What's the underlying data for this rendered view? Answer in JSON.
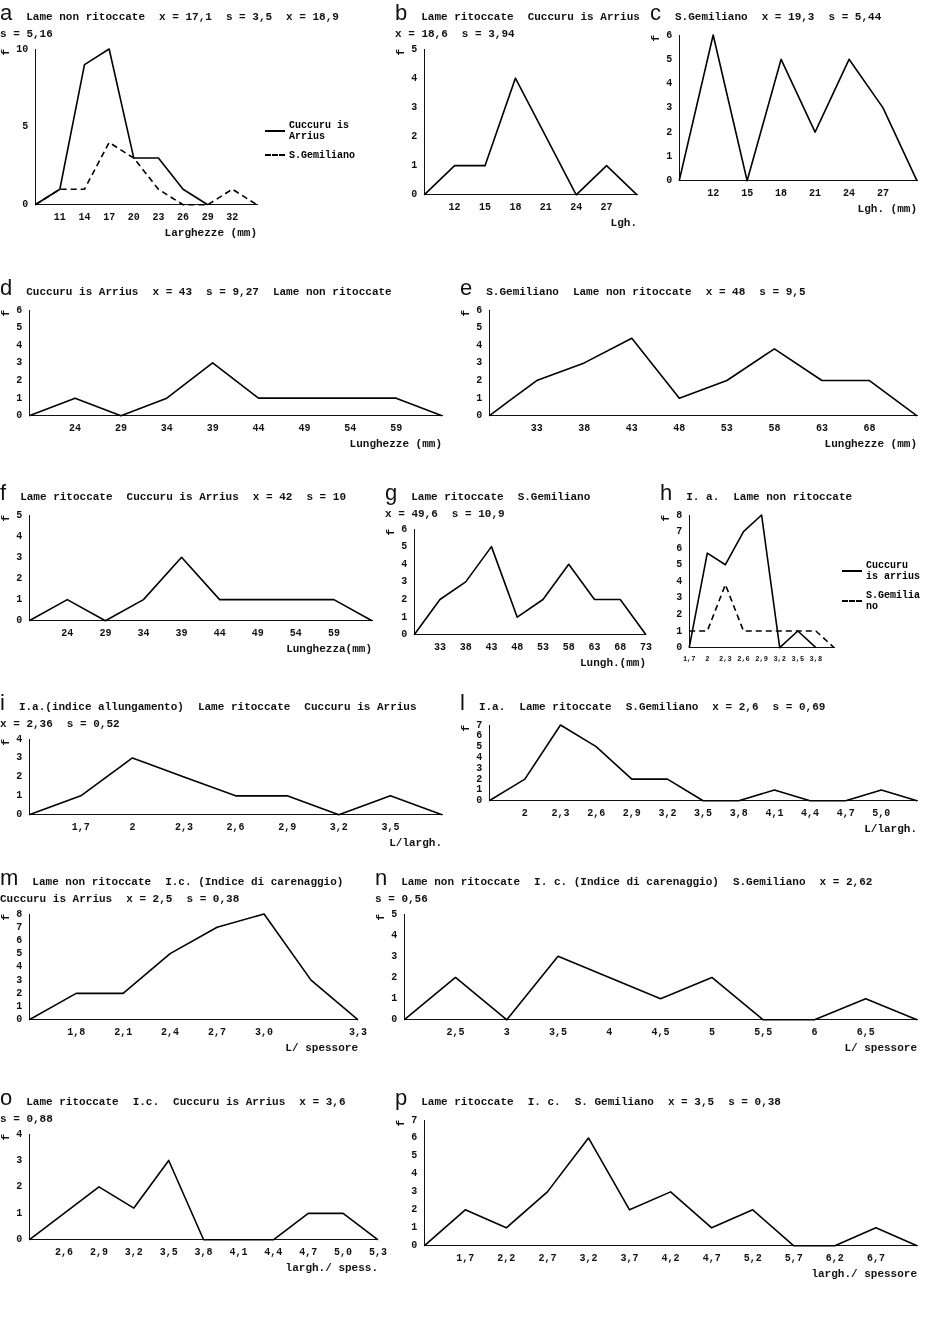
{
  "chart_data": [
    {
      "type": "line",
      "title": "a",
      "xlabel": "Larghezze (mm)",
      "ylabel": "f",
      "categories": [
        null,
        "11",
        "14",
        "17",
        "20",
        "23",
        "26",
        "29",
        "32",
        null
      ],
      "ylim": [
        0,
        10
      ],
      "yticks": [
        0,
        5,
        10
      ],
      "grid": false,
      "legend": "right",
      "marker": "none",
      "annotations": [
        "Lame non ritoccate",
        "x = 17,1",
        "s = 3,5",
        "x = 18,9",
        "s = 5,16"
      ],
      "series": [
        {
          "name": "Cuccuru is Arrius",
          "color": "#000000",
          "line_style": "solid",
          "values": [
            0,
            1,
            9,
            10,
            3,
            3,
            1,
            0,
            null,
            null
          ]
        },
        {
          "name": "S.Gemiliano",
          "color": "#000000",
          "line_style": "dashed",
          "values": [
            0,
            1,
            1,
            4,
            3,
            1,
            0,
            0,
            1,
            0
          ]
        }
      ]
    },
    {
      "type": "line",
      "title": "b",
      "xlabel": "Lgh.",
      "ylabel": "f",
      "categories": [
        null,
        "12",
        "15",
        "18",
        "21",
        "24",
        "27",
        null
      ],
      "ylim": [
        0,
        5
      ],
      "yticks": [
        0,
        1,
        2,
        3,
        4,
        5
      ],
      "grid": false,
      "marker": "none",
      "annotations": [
        "Lame ritoccate",
        "Cuccuru is Arrius",
        "x = 18,6",
        "s = 3,94"
      ],
      "series": [
        {
          "color": "#000000",
          "values": [
            0,
            1,
            1,
            4,
            2,
            0,
            1,
            0
          ]
        }
      ]
    },
    {
      "type": "line",
      "title": "c",
      "xlabel": "Lgh. (mm)",
      "ylabel": "f",
      "categories": [
        null,
        "12",
        "15",
        "18",
        "21",
        "24",
        "27",
        null
      ],
      "ylim": [
        0,
        6
      ],
      "yticks": [
        0,
        1,
        2,
        3,
        4,
        5,
        6
      ],
      "grid": false,
      "marker": "none",
      "annotations": [
        "S.Gemiliano",
        "x = 19,3",
        "s = 5,44"
      ],
      "series": [
        {
          "color": "#000000",
          "values": [
            0,
            6,
            0,
            5,
            2,
            5,
            3,
            0
          ]
        }
      ]
    },
    {
      "type": "line",
      "title": "d",
      "xlabel": "Lunghezze (mm)",
      "ylabel": "f",
      "categories": [
        null,
        "24",
        "29",
        "34",
        "39",
        "44",
        "49",
        "54",
        "59",
        null
      ],
      "ylim": [
        0,
        6
      ],
      "yticks": [
        0,
        1,
        2,
        3,
        4,
        5,
        6
      ],
      "grid": false,
      "marker": "none",
      "annotations": [
        "Cuccuru is Arrius",
        "x = 43",
        "s = 9,27",
        "Lame non ritoccate"
      ],
      "series": [
        {
          "color": "#000000",
          "values": [
            0,
            1,
            0,
            1,
            3,
            1,
            1,
            1,
            1,
            0
          ]
        }
      ]
    },
    {
      "type": "line",
      "title": "e",
      "xlabel": "Lunghezze (mm)",
      "ylabel": "f",
      "categories": [
        null,
        "33",
        "38",
        "43",
        "48",
        "53",
        "58",
        "63",
        "68",
        null
      ],
      "ylim": [
        0,
        6
      ],
      "yticks": [
        0,
        1,
        2,
        3,
        4,
        5,
        6
      ],
      "grid": false,
      "marker": "none",
      "annotations": [
        "S.Gemiliano",
        "Lame non ritoccate",
        "x = 48",
        "s = 9,5"
      ],
      "series": [
        {
          "color": "#000000",
          "values": [
            0,
            2,
            3,
            4.4,
            1,
            2,
            3.8,
            2,
            2,
            0
          ]
        }
      ]
    },
    {
      "type": "line",
      "title": "f",
      "xlabel": "Lunghezza(mm)",
      "ylabel": "f",
      "categories": [
        null,
        "24",
        "29",
        "34",
        "39",
        "44",
        "49",
        "54",
        "59",
        null
      ],
      "ylim": [
        0,
        5
      ],
      "yticks": [
        0,
        1,
        2,
        3,
        4,
        5
      ],
      "grid": false,
      "marker": "none",
      "annotations": [
        "Lame ritoccate",
        "Cuccuru is Arrius",
        "x = 42",
        "s = 10"
      ],
      "series": [
        {
          "color": "#000000",
          "values": [
            0,
            1,
            0,
            1,
            3,
            1,
            1,
            1,
            1,
            0
          ]
        }
      ]
    },
    {
      "type": "line",
      "title": "g",
      "xlabel": "Lungh.(mm)",
      "ylabel": "f",
      "categories": [
        null,
        "33",
        "38",
        "43",
        "48",
        "53",
        "58",
        "63",
        "68",
        "73"
      ],
      "ylim": [
        0,
        6
      ],
      "yticks": [
        0,
        1,
        2,
        3,
        4,
        5,
        6
      ],
      "grid": false,
      "marker": "none",
      "annotations": [
        "Lame ritoccate",
        "S.Gemiliano",
        "x = 49,6",
        "s = 10,9"
      ],
      "series": [
        {
          "color": "#000000",
          "values": [
            0,
            2,
            3,
            5,
            1,
            2,
            4,
            2,
            2,
            0
          ]
        }
      ]
    },
    {
      "type": "line",
      "title": "h",
      "ylabel": "f",
      "categories": [
        "1,7",
        "2",
        "2,3",
        "2,6",
        "2,9",
        "3,2",
        "3,5",
        "3,8",
        null
      ],
      "ylim": [
        0,
        8
      ],
      "yticks": [
        0,
        1,
        2,
        3,
        4,
        5,
        6,
        7,
        8
      ],
      "grid": false,
      "legend": "right",
      "marker": "none",
      "annotations": [
        "I. a.",
        "Lame non ritoccate"
      ],
      "series": [
        {
          "name": "Cuccuru is arrius",
          "color": "#000000",
          "line_style": "solid",
          "values": [
            0,
            5.7,
            5,
            7,
            8,
            0,
            1,
            0,
            null
          ]
        },
        {
          "name": "S.Gemiliano",
          "color": "#000000",
          "line_style": "dashed",
          "values": [
            1,
            1,
            3.8,
            1,
            1,
            1,
            1,
            1,
            0
          ]
        }
      ]
    },
    {
      "type": "line",
      "title": "i",
      "xlabel": "L/largh.",
      "ylabel": "f",
      "categories": [
        null,
        "1,7",
        "2",
        "2,3",
        "2,6",
        "2,9",
        "3,2",
        "3,5",
        null
      ],
      "ylim": [
        0,
        4
      ],
      "yticks": [
        0,
        1,
        2,
        3,
        4
      ],
      "grid": false,
      "marker": "none",
      "annotations": [
        "I.a.(indice allungamento)",
        "Lame ritoccate",
        "Cuccuru is Arrius",
        "x = 2,36",
        "s = 0,52"
      ],
      "series": [
        {
          "color": "#000000",
          "values": [
            0,
            1,
            3,
            2,
            1,
            1,
            0,
            1,
            0
          ]
        }
      ]
    },
    {
      "type": "line",
      "title": "l",
      "xlabel": "L/largh.",
      "ylabel": "f",
      "categories": [
        null,
        "2",
        "2,3",
        "2,6",
        "2,9",
        "3,2",
        "3,5",
        "3,8",
        "4,1",
        "4,4",
        "4,7",
        "5,0",
        null
      ],
      "ylim": [
        0,
        7
      ],
      "yticks": [
        0,
        1,
        2,
        3,
        4,
        5,
        6,
        7
      ],
      "grid": false,
      "marker": "none",
      "annotations": [
        "I.a.",
        "Lame ritoccate",
        "S.Gemiliano",
        "x = 2,6",
        "s = 0,69"
      ],
      "series": [
        {
          "color": "#000000",
          "values": [
            0,
            2,
            7,
            5,
            2,
            2,
            0,
            0,
            1,
            0,
            0,
            1,
            0
          ]
        }
      ]
    },
    {
      "type": "line",
      "title": "m",
      "xlabel": "L/ spessore",
      "ylabel": "f",
      "categories": [
        null,
        "1,8",
        "2,1",
        "2,4",
        "2,7",
        "3,0",
        null,
        "3,3"
      ],
      "ylim": [
        0,
        8
      ],
      "yticks": [
        0,
        1,
        2,
        3,
        4,
        5,
        6,
        7,
        8
      ],
      "grid": false,
      "marker": "none",
      "annotations": [
        "Lame non ritoccate",
        "I.c. (Indice di carenaggio)",
        "Cuccuru is Arrius",
        "x = 2,5",
        "s = 0,38"
      ],
      "series": [
        {
          "color": "#000000",
          "values": [
            0,
            2,
            2,
            5,
            7,
            8,
            3,
            0
          ]
        }
      ]
    },
    {
      "type": "line",
      "title": "n",
      "xlabel": "L/ spessore",
      "ylabel": "f",
      "categories": [
        null,
        "2,5",
        "3",
        "3,5",
        "4",
        "4,5",
        "5",
        "5,5",
        "6",
        "6,5",
        null
      ],
      "ylim": [
        0,
        5
      ],
      "yticks": [
        0,
        1,
        2,
        3,
        4,
        5
      ],
      "grid": false,
      "marker": "none",
      "annotations": [
        "Lame non ritoccate",
        "I. c. (Indice di carenaggio)",
        "S.Gemiliano",
        "x = 2,62",
        "s = 0,56"
      ],
      "series": [
        {
          "color": "#000000",
          "values": [
            0,
            2,
            0,
            3,
            2,
            1,
            2,
            0,
            0,
            1,
            0
          ]
        }
      ]
    },
    {
      "type": "line",
      "title": "o",
      "xlabel": "largh./ spess.",
      "ylabel": "f",
      "categories": [
        null,
        "2,6",
        "2,9",
        "3,2",
        "3,5",
        "3,8",
        "4,1",
        "4,4",
        "4,7",
        "5,0",
        "5,3"
      ],
      "ylim": [
        0,
        4
      ],
      "yticks": [
        0,
        1,
        2,
        3,
        4
      ],
      "grid": false,
      "marker": "none",
      "annotations": [
        "Lame ritoccate",
        "I.c.",
        "Cuccuru is Arrius",
        "x = 3,6",
        "s = 0,88"
      ],
      "series": [
        {
          "color": "#000000",
          "values": [
            0,
            1,
            2,
            1.2,
            3,
            0,
            0,
            0,
            1,
            1,
            0
          ]
        }
      ]
    },
    {
      "type": "line",
      "title": "p",
      "xlabel": "largh./ spessore",
      "ylabel": "f",
      "categories": [
        null,
        "1,7",
        "2,2",
        "2,7",
        "3,2",
        "3,7",
        "4,2",
        "4,7",
        "5,2",
        "5,7",
        "6,2",
        "6,7",
        null
      ],
      "ylim": [
        0,
        7
      ],
      "yticks": [
        0,
        1,
        2,
        3,
        4,
        5,
        6,
        7
      ],
      "grid": false,
      "marker": "none",
      "annotations": [
        "Lame ritoccate",
        "I. c.",
        "S. Gemiliano",
        "x = 3,5",
        "s = 0,38"
      ],
      "series": [
        {
          "color": "#000000",
          "values": [
            0,
            2,
            1,
            3,
            6,
            2,
            3,
            1,
            2,
            0,
            0,
            1,
            0
          ]
        }
      ]
    }
  ]
}
